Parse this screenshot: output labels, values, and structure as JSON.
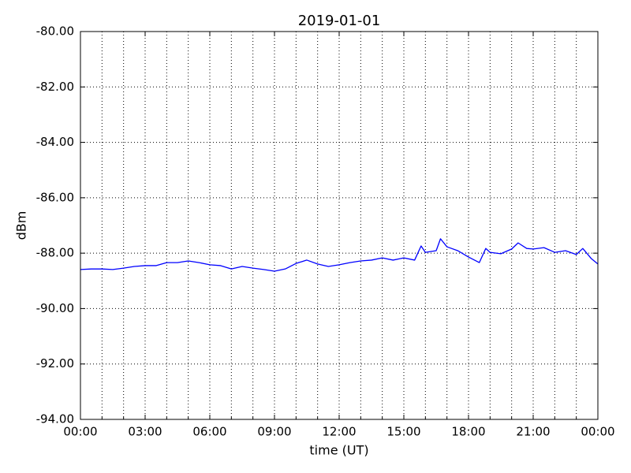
{
  "chart_data": {
    "type": "line",
    "title": "2019-01-01",
    "xlabel": "time (UT)",
    "ylabel": "dBm",
    "x": [
      0,
      0.5,
      1,
      1.5,
      2,
      2.5,
      3,
      3.5,
      4,
      4.5,
      5,
      5.5,
      6,
      6.5,
      7,
      7.5,
      8,
      8.5,
      9,
      9.5,
      10,
      10.5,
      11,
      11.5,
      12,
      12.5,
      13,
      13.5,
      14,
      14.5,
      15,
      15.5,
      15.8,
      16,
      16.5,
      16.7,
      17,
      17.5,
      18,
      18.5,
      18.8,
      19,
      19.5,
      20,
      20.3,
      20.7,
      21,
      21.5,
      22,
      22.5,
      23,
      23.3,
      23.7,
      24
    ],
    "series": [
      {
        "color": "#0000ff",
        "values": [
          -88.59,
          -88.57,
          -88.57,
          -88.59,
          -88.54,
          -88.48,
          -88.45,
          -88.45,
          -88.34,
          -88.34,
          -88.28,
          -88.34,
          -88.42,
          -88.45,
          -88.57,
          -88.48,
          -88.54,
          -88.59,
          -88.65,
          -88.57,
          -88.37,
          -88.25,
          -88.39,
          -88.48,
          -88.42,
          -88.34,
          -88.28,
          -88.25,
          -88.17,
          -88.25,
          -88.17,
          -88.25,
          -87.74,
          -87.97,
          -87.91,
          -87.48,
          -87.77,
          -87.91,
          -88.14,
          -88.34,
          -87.83,
          -87.97,
          -88.02,
          -87.85,
          -87.63,
          -87.83,
          -87.85,
          -87.8,
          -87.97,
          -87.91,
          -88.05,
          -87.83,
          -88.2,
          -88.39
        ]
      }
    ],
    "xlim": [
      0,
      24
    ],
    "xticks": [
      {
        "value": 0,
        "label": "00:00"
      },
      {
        "value": 3,
        "label": "03:00"
      },
      {
        "value": 6,
        "label": "06:00"
      },
      {
        "value": 9,
        "label": "09:00"
      },
      {
        "value": 12,
        "label": "12:00"
      },
      {
        "value": 15,
        "label": "15:00"
      },
      {
        "value": 18,
        "label": "18:00"
      },
      {
        "value": 21,
        "label": "21:00"
      },
      {
        "value": 24,
        "label": "00:00"
      }
    ],
    "xminorticks": [
      1,
      2,
      4,
      5,
      7,
      8,
      10,
      11,
      13,
      14,
      16,
      17,
      19,
      20,
      22,
      23
    ],
    "ylim": [
      -94,
      -80
    ],
    "yticks": [
      {
        "value": -94,
        "label": "-94.00"
      },
      {
        "value": -92,
        "label": "-92.00"
      },
      {
        "value": -90,
        "label": "-90.00"
      },
      {
        "value": -88,
        "label": "-88.00"
      },
      {
        "value": -86,
        "label": "-86.00"
      },
      {
        "value": -84,
        "label": "-84.00"
      },
      {
        "value": -82,
        "label": "-82.00"
      },
      {
        "value": -80,
        "label": "-80.00"
      }
    ],
    "grid": true
  }
}
